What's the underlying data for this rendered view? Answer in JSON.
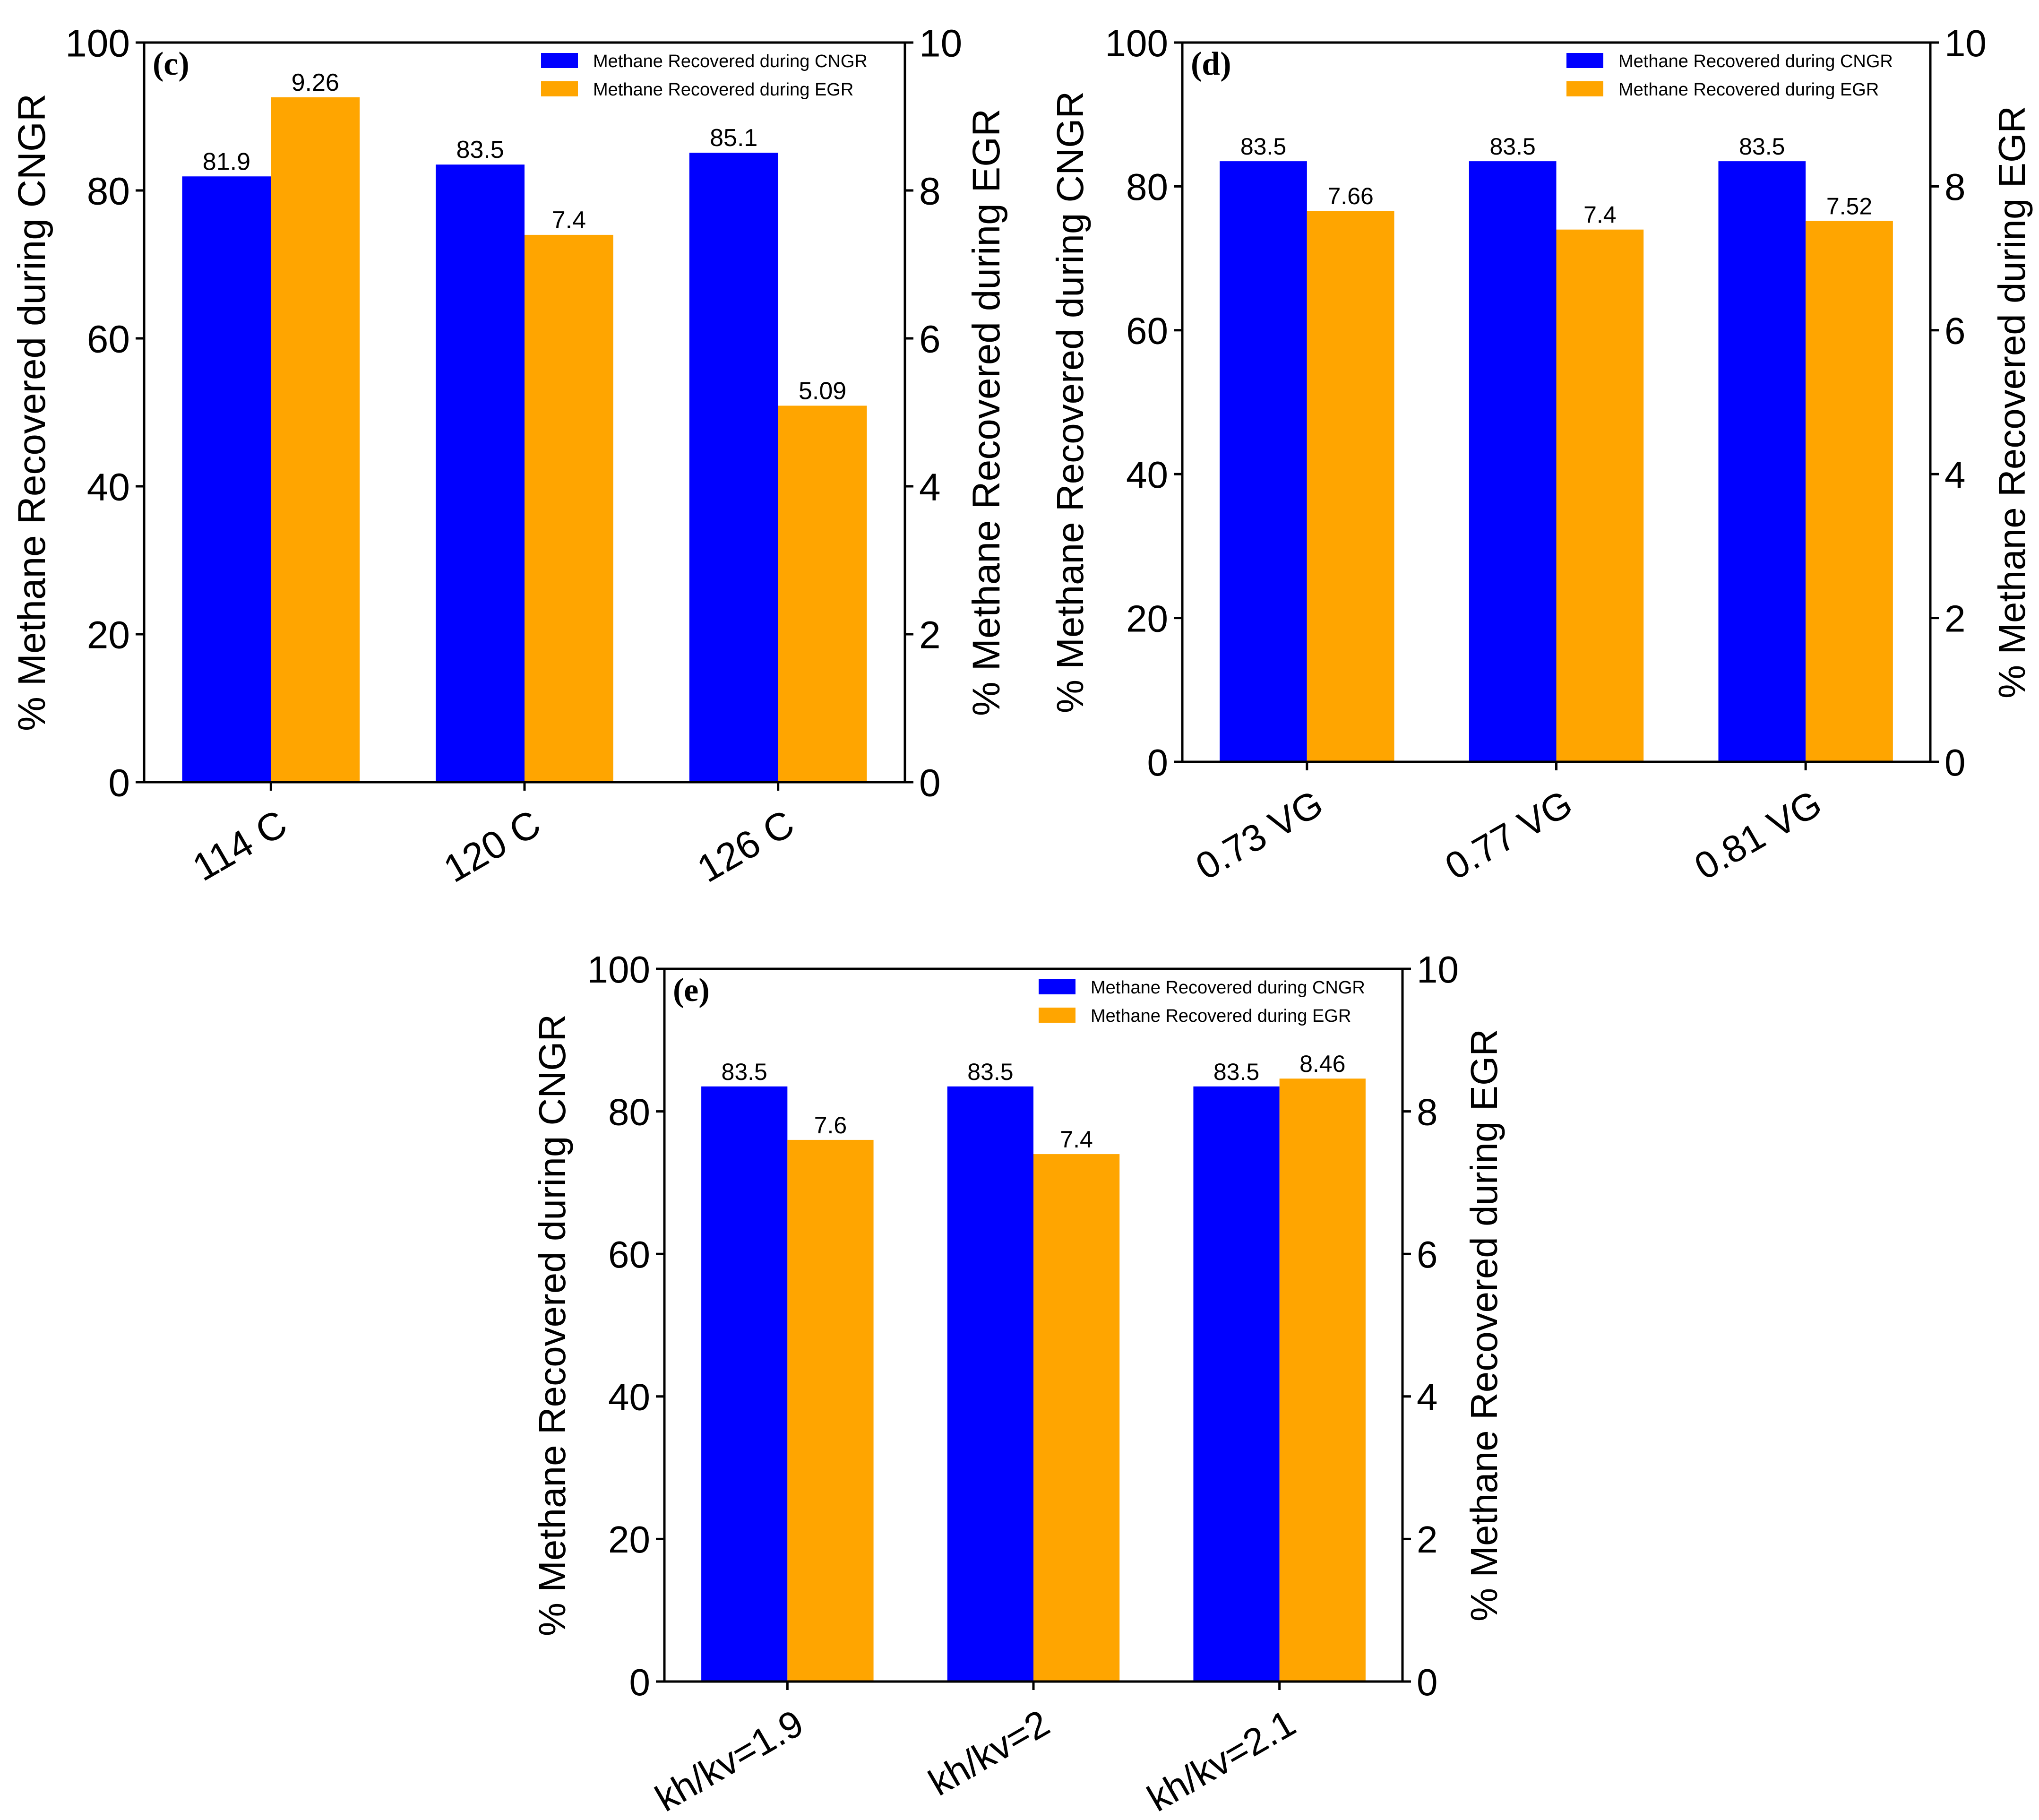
{
  "colors": {
    "cngr": "#0000FF",
    "egr": "#FFA500",
    "axis": "#000000"
  },
  "chart_data": [
    {
      "panel": "(c)",
      "type": "bar",
      "categories": [
        "114 C",
        "120 C",
        "126 C"
      ],
      "series": [
        {
          "name": "Methane Recovered during CNGR",
          "axis": "left",
          "values": [
            81.9,
            83.5,
            85.1
          ],
          "labels": [
            "81.9",
            "83.5",
            "85.1"
          ]
        },
        {
          "name": "Methane Recovered during EGR",
          "axis": "right",
          "values": [
            9.26,
            7.4,
            5.09
          ],
          "labels": [
            "9.26",
            "7.4",
            "5.09"
          ]
        }
      ],
      "ylabel": "% Methane Recovered during CNGR",
      "y2label": "% Methane Recovered during EGR",
      "ylim": [
        0,
        100
      ],
      "y2lim": [
        0,
        10
      ],
      "yticks": [
        "0",
        "20",
        "40",
        "60",
        "80",
        "100"
      ],
      "y2ticks": [
        "0",
        "2",
        "4",
        "6",
        "8",
        "10"
      ],
      "legend": "top-right"
    },
    {
      "panel": "(d)",
      "type": "bar",
      "categories": [
        "0.73 VG",
        "0.77 VG",
        "0.81 VG"
      ],
      "series": [
        {
          "name": "Methane Recovered during CNGR",
          "axis": "left",
          "values": [
            83.5,
            83.5,
            83.5
          ],
          "labels": [
            "83.5",
            "83.5",
            "83.5"
          ]
        },
        {
          "name": "Methane Recovered during EGR",
          "axis": "right",
          "values": [
            7.66,
            7.4,
            7.52
          ],
          "labels": [
            "7.66",
            "7.4",
            "7.52"
          ]
        }
      ],
      "ylabel": "% Methane Recovered during CNGR",
      "y2label": "% Methane Recovered during EGR",
      "ylim": [
        0,
        100
      ],
      "y2lim": [
        0,
        10
      ],
      "yticks": [
        "0",
        "20",
        "40",
        "60",
        "80",
        "100"
      ],
      "y2ticks": [
        "0",
        "2",
        "4",
        "6",
        "8",
        "10"
      ],
      "legend": "top-right"
    },
    {
      "panel": "(e)",
      "type": "bar",
      "categories": [
        "kh/kv=1.9",
        "kh/kv=2",
        "kh/kv=2.1"
      ],
      "series": [
        {
          "name": "Methane Recovered during CNGR",
          "axis": "left",
          "values": [
            83.5,
            83.5,
            83.5
          ],
          "labels": [
            "83.5",
            "83.5",
            "83.5"
          ]
        },
        {
          "name": "Methane Recovered during EGR",
          "axis": "right",
          "values": [
            7.6,
            7.4,
            8.46
          ],
          "labels": [
            "7.6",
            "7.4",
            "8.46"
          ]
        }
      ],
      "ylabel": "% Methane Recovered during CNGR",
      "y2label": "% Methane Recovered during EGR",
      "ylim": [
        0,
        100
      ],
      "y2lim": [
        0,
        10
      ],
      "yticks": [
        "0",
        "20",
        "40",
        "60",
        "80",
        "100"
      ],
      "y2ticks": [
        "0",
        "2",
        "4",
        "6",
        "8",
        "10"
      ],
      "legend": "top-right"
    }
  ]
}
